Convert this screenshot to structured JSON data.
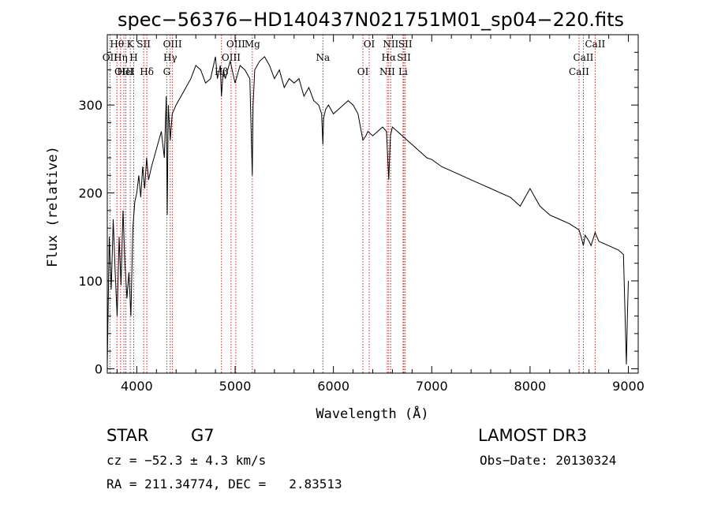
{
  "chart_data": {
    "type": "line",
    "title": "spec−56376−HD140437N021751M01_sp04−220.fits",
    "xlabel": "Wavelength (Å)",
    "ylabel": "Flux (relative)",
    "xlim": [
      3700,
      9100
    ],
    "ylim": [
      -5,
      380
    ],
    "xticks": [
      4000,
      5000,
      6000,
      7000,
      8000,
      9000
    ],
    "yticks": [
      0,
      100,
      200,
      300
    ],
    "grid": false,
    "series": [
      {
        "name": "flux",
        "x": [
          3700,
          3720,
          3740,
          3760,
          3780,
          3800,
          3820,
          3840,
          3860,
          3880,
          3900,
          3920,
          3940,
          3960,
          3980,
          4000,
          4020,
          4040,
          4060,
          4080,
          4100,
          4120,
          4150,
          4200,
          4250,
          4280,
          4300,
          4310,
          4320,
          4340,
          4360,
          4400,
          4450,
          4500,
          4550,
          4600,
          4650,
          4700,
          4750,
          4800,
          4820,
          4850,
          4861,
          4880,
          4900,
          4950,
          5000,
          5050,
          5100,
          5150,
          5175,
          5183,
          5200,
          5250,
          5300,
          5350,
          5400,
          5450,
          5500,
          5550,
          5600,
          5650,
          5700,
          5750,
          5800,
          5850,
          5880,
          5893,
          5900,
          5920,
          5950,
          6000,
          6050,
          6100,
          6150,
          6200,
          6250,
          6300,
          6330,
          6350,
          6400,
          6450,
          6500,
          6540,
          6563,
          6580,
          6600,
          6650,
          6700,
          6750,
          6800,
          6850,
          6900,
          6950,
          7000,
          7100,
          7200,
          7300,
          7400,
          7500,
          7600,
          7700,
          7800,
          7900,
          8000,
          8050,
          8100,
          8150,
          8200,
          8300,
          8400,
          8498,
          8520,
          8542,
          8560,
          8600,
          8620,
          8662,
          8680,
          8700,
          8800,
          8900,
          8950,
          8980,
          8990,
          9000
        ],
        "y": [
          5,
          150,
          90,
          170,
          110,
          60,
          150,
          95,
          180,
          120,
          80,
          110,
          60,
          160,
          190,
          200,
          220,
          195,
          230,
          205,
          240,
          215,
          230,
          250,
          270,
          240,
          310,
          175,
          300,
          260,
          290,
          300,
          310,
          320,
          330,
          345,
          340,
          325,
          330,
          355,
          330,
          345,
          310,
          340,
          330,
          350,
          325,
          345,
          340,
          330,
          220,
          300,
          340,
          350,
          355,
          345,
          330,
          340,
          320,
          330,
          325,
          330,
          310,
          320,
          305,
          300,
          290,
          255,
          285,
          295,
          300,
          290,
          295,
          300,
          305,
          300,
          290,
          260,
          265,
          270,
          265,
          270,
          275,
          270,
          215,
          265,
          275,
          270,
          265,
          260,
          255,
          250,
          245,
          240,
          238,
          230,
          225,
          220,
          215,
          210,
          205,
          200,
          195,
          185,
          205,
          195,
          185,
          180,
          175,
          170,
          165,
          158,
          150,
          140,
          152,
          145,
          140,
          155,
          150,
          145,
          140,
          135,
          130,
          5,
          60,
          100
        ]
      }
    ],
    "spectral_lines": [
      {
        "label": "Hθ",
        "x": 3798
      },
      {
        "label": "OII",
        "x": 3727
      },
      {
        "label": "OIII",
        "x": 3869
      },
      {
        "label": "K",
        "x": 3934
      },
      {
        "label": "H",
        "x": 3969
      },
      {
        "label": "HeI",
        "x": 3889
      },
      {
        "label": "SII",
        "x": 4070
      },
      {
        "label": "Hη",
        "x": 3835
      },
      {
        "label": "Hδ",
        "x": 4102
      },
      {
        "label": "OIII",
        "x": 4363
      },
      {
        "label": "Hγ",
        "x": 4340
      },
      {
        "label": "G",
        "x": 4305
      },
      {
        "label": "OIII",
        "x": 5007
      },
      {
        "label": "OIII",
        "x": 4959
      },
      {
        "label": "Hβ",
        "x": 4861
      },
      {
        "label": "Mg",
        "x": 5175
      },
      {
        "label": "Na",
        "x": 5893
      },
      {
        "label": "OI",
        "x": 6300
      },
      {
        "label": "OI",
        "x": 6364
      },
      {
        "label": "Hα",
        "x": 6563
      },
      {
        "label": "NII",
        "x": 6548
      },
      {
        "label": "NII",
        "x": 6583
      },
      {
        "label": "SII",
        "x": 6717
      },
      {
        "label": "Li",
        "x": 6708
      },
      {
        "label": "SII",
        "x": 6731
      },
      {
        "label": "CaII",
        "x": 8542
      },
      {
        "label": "CaII",
        "x": 8498
      },
      {
        "label": "CaII",
        "x": 8662
      }
    ]
  },
  "info": {
    "object_class": "STAR",
    "subclass": "G7",
    "survey": "LAMOST DR3",
    "redshift_line": "cz = −52.3 ± 4.3 km/s",
    "obs_date_line": "Obs−Date: 20130324",
    "coords_line": "RA = 211.34774, DEC =   2.83513"
  }
}
